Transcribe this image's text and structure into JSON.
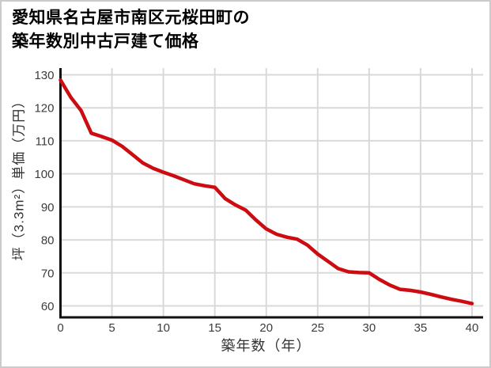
{
  "chart_data": {
    "type": "line",
    "title": "愛知県名古屋市南区元桜田町の築年数別中古戸建て価格",
    "title_lines": [
      "愛知県名古屋市南区元桜田町の",
      "築年数別中古戸建て価格"
    ],
    "xlabel": "築年数（年）",
    "ylabel": "坪（3.3m²）単価（万円）",
    "x": [
      0,
      1,
      2,
      3,
      4,
      5,
      6,
      7,
      8,
      9,
      10,
      11,
      12,
      13,
      14,
      15,
      16,
      17,
      18,
      19,
      20,
      21,
      22,
      23,
      24,
      25,
      26,
      27,
      28,
      29,
      30,
      31,
      32,
      33,
      34,
      35,
      36,
      37,
      38,
      39,
      40
    ],
    "y": [
      128.4,
      123.2,
      119.2,
      112.3,
      111.3,
      110.2,
      108.3,
      105.8,
      103.3,
      101.7,
      100.5,
      99.4,
      98.2,
      97.0,
      96.4,
      95.9,
      92.5,
      90.6,
      89.0,
      86.0,
      83.3,
      81.7,
      80.8,
      80.2,
      78.4,
      75.7,
      73.5,
      71.3,
      70.3,
      70.1,
      70.0,
      68.0,
      66.3,
      65.0,
      64.7,
      64.2,
      63.5,
      62.7,
      62.0,
      61.4,
      60.7
    ],
    "xlim": [
      0,
      40
    ],
    "ylim": [
      60,
      130
    ],
    "xticks": [
      0,
      5,
      10,
      15,
      20,
      25,
      30,
      35,
      40
    ],
    "yticks": [
      60,
      70,
      80,
      90,
      100,
      110,
      120,
      130
    ],
    "grid": true,
    "legend": false,
    "colors": {
      "line": "#cc0c10",
      "grid": "#d9d9d9",
      "axis": "#111111",
      "tick_label": "#3c3c3c",
      "border": "#cbcbcb",
      "background": "#ffffff"
    }
  }
}
